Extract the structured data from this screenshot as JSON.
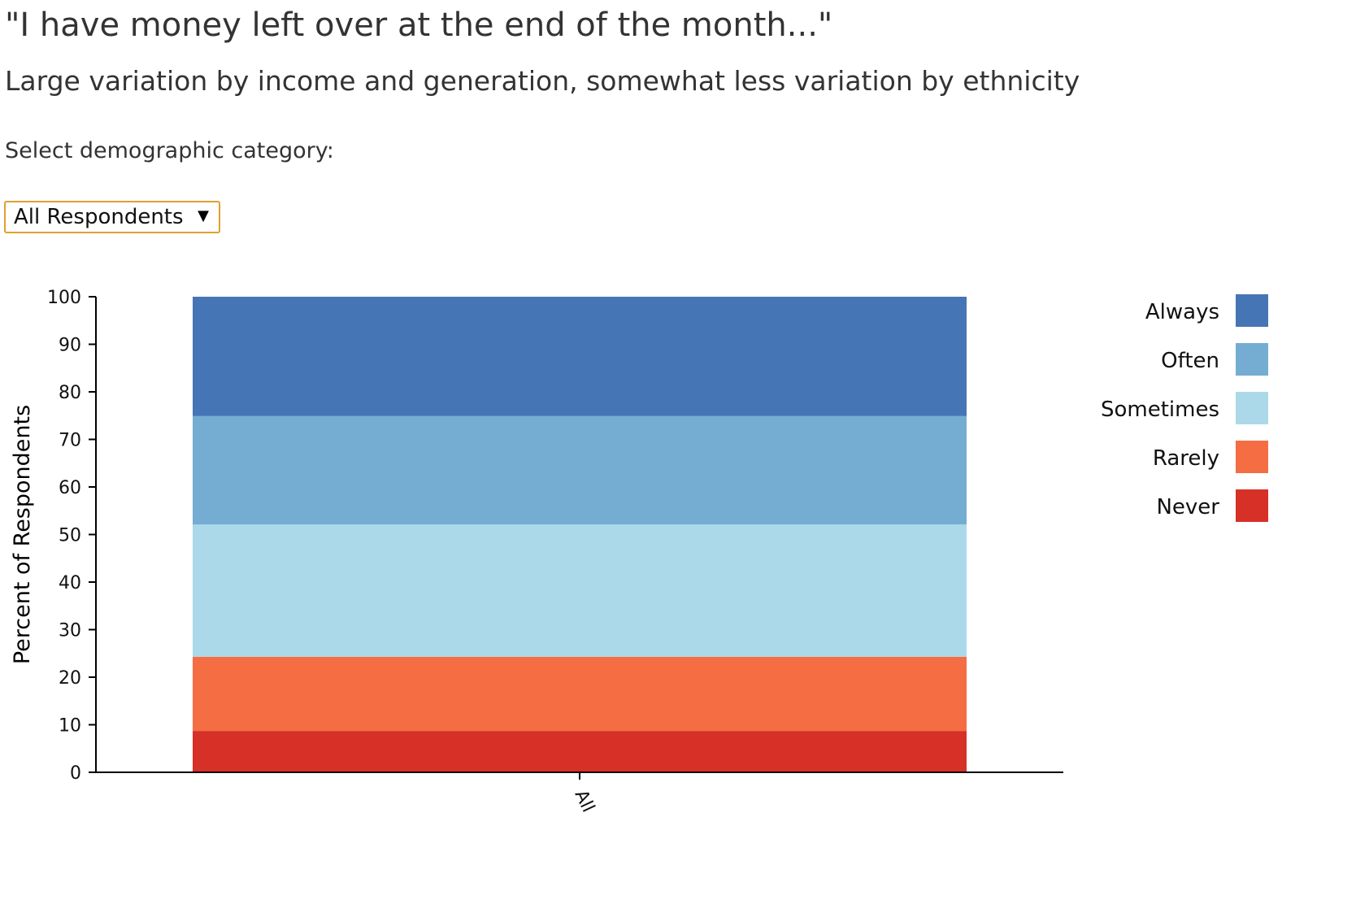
{
  "header": {
    "title": "\"I have money left over at the end of the month...\"",
    "subtitle": "Large variation by income and generation, somewhat less variation by ethnicity"
  },
  "control": {
    "label": "Select demographic category:",
    "selected": "All Respondents"
  },
  "colors": {
    "Always": "#4575b4",
    "Often": "#74add1",
    "Sometimes": "#abd9e9",
    "Rarely": "#f46d43",
    "Never": "#d73027"
  },
  "chart_data": {
    "type": "bar",
    "stacked": true,
    "categories": [
      "All"
    ],
    "series": [
      {
        "name": "Never",
        "values": [
          8.7
        ]
      },
      {
        "name": "Rarely",
        "values": [
          15.6
        ]
      },
      {
        "name": "Sometimes",
        "values": [
          27.8
        ]
      },
      {
        "name": "Often",
        "values": [
          22.8
        ]
      },
      {
        "name": "Always",
        "values": [
          25.1
        ]
      }
    ],
    "legend_order": [
      "Always",
      "Often",
      "Sometimes",
      "Rarely",
      "Never"
    ],
    "ylabel": "Percent of Respondents",
    "ylim": [
      0,
      100
    ],
    "yticks": [
      0,
      10,
      20,
      30,
      40,
      50,
      60,
      70,
      80,
      90,
      100
    ],
    "legend_position": "top-right",
    "grid": false
  }
}
